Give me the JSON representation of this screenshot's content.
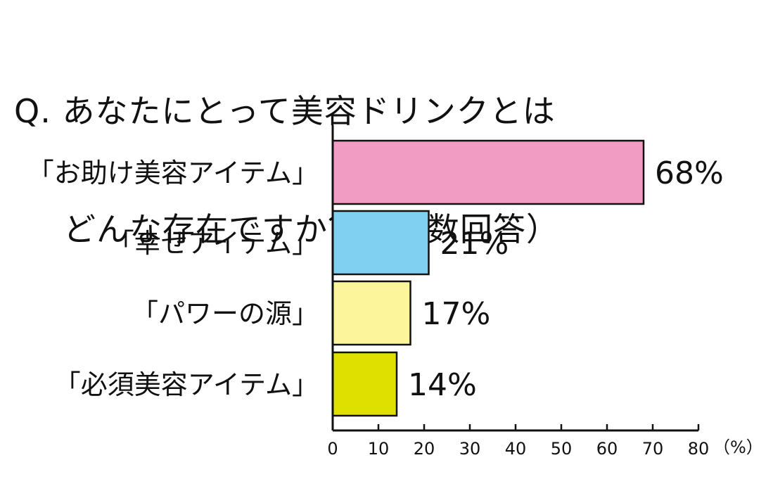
{
  "title_line1": "Q. あなたにとって美容ドリンクとは",
  "title_line2": "どんな存在ですか？（複数回答）",
  "unit_label": "（%）",
  "chart_data": {
    "type": "bar",
    "orientation": "horizontal",
    "title": "Q. あなたにとって美容ドリンクとは どんな存在ですか？（複数回答）",
    "categories": [
      "「お助け美容アイテム」",
      "「幸せアイテム」",
      "「パワーの源」",
      "「必須美容アイテム」"
    ],
    "values": [
      68,
      21,
      17,
      14
    ],
    "value_labels": [
      "68%",
      "21%",
      "17%",
      "14%"
    ],
    "colors": [
      "#f19cc2",
      "#7fd0f1",
      "#fdf59c",
      "#e0e000"
    ],
    "xlim": [
      0,
      80
    ],
    "xticks": [
      0,
      10,
      20,
      30,
      40,
      50,
      60,
      70,
      80
    ],
    "xlabel": "（%）",
    "grid": false
  }
}
